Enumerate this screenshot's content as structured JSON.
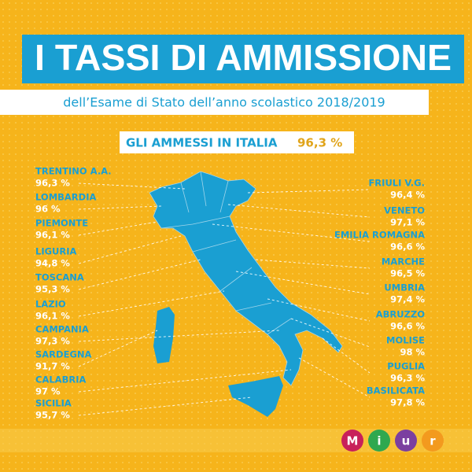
{
  "header": {
    "title": "I TASSI DI AMMISSIONE",
    "subtitle": "dell’Esame di Stato dell’anno scolastico 2018/2019"
  },
  "headline": {
    "label": "GLI AMMESSI IN ITALIA",
    "value": "96,3 %"
  },
  "regions_left": [
    {
      "name": "TRENTINO A.A.",
      "value": "96,3 %"
    },
    {
      "name": "LOMBARDIA",
      "value": "96 %"
    },
    {
      "name": "PIEMONTE",
      "value": "96,1 %"
    },
    {
      "name": "LIGURIA",
      "value": "94,8 %"
    },
    {
      "name": "TOSCANA",
      "value": "95,3 %"
    },
    {
      "name": "LAZIO",
      "value": "96,1 %"
    },
    {
      "name": "CAMPANIA",
      "value": "97,3 %"
    },
    {
      "name": "SARDEGNA",
      "value": "91,7 %"
    },
    {
      "name": "CALABRIA",
      "value": "97 %"
    },
    {
      "name": "SICILIA",
      "value": "95,7  %"
    }
  ],
  "regions_right": [
    {
      "name": "FRIULI V.G.",
      "value": "96,4 %"
    },
    {
      "name": "VENETO",
      "value": "97,1 %"
    },
    {
      "name": "EMILIA ROMAGNA",
      "value": "96,6 %"
    },
    {
      "name": "MARCHE",
      "value": "96,5 %"
    },
    {
      "name": "UMBRIA",
      "value": "97,4 %"
    },
    {
      "name": "ABRUZZO",
      "value": "96,6 %"
    },
    {
      "name": "MOLISE",
      "value": "98 %"
    },
    {
      "name": "PUGLIA",
      "value": "96,3 %"
    },
    {
      "name": "BASILICATA",
      "value": "97,8 %"
    }
  ],
  "logo": {
    "letters": [
      "M",
      "i",
      "u",
      "r"
    ]
  }
}
